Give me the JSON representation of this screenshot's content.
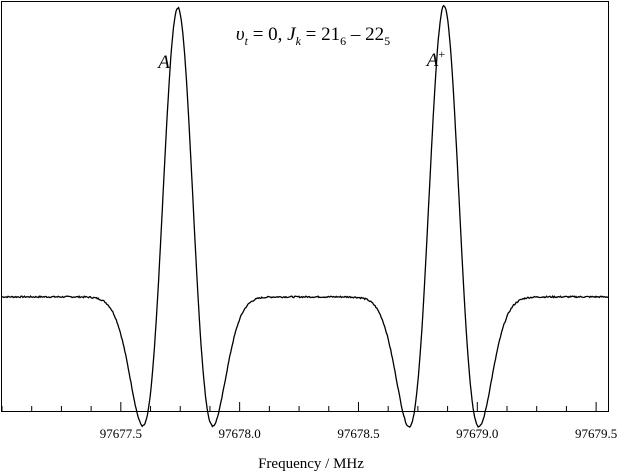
{
  "chart_data": {
    "type": "line",
    "title": {
      "prefix": "υ",
      "prefix_sub": "t",
      "mid": " = 0, ",
      "jsym": "J",
      "jsym_sub": "k",
      "eq": " = 21",
      "sub1": "6",
      "dash": " – 22",
      "sub2": "5"
    },
    "xlabel": "Frequency / MHz",
    "ylabel": "",
    "xlim": [
      97677.0,
      97679.55
    ],
    "ylim": [
      -1.15,
      1.0
    ],
    "grid": false,
    "y_ticks_shown": false,
    "x_ticks": [
      97677.5,
      97678.0,
      97678.5,
      97679.0,
      97679.5
    ],
    "x_tick_labels": [
      "97677.5",
      "97678.0",
      "97678.5",
      "97679.0",
      "97679.5"
    ],
    "x_minor_step": 0.125,
    "annotations": [
      {
        "text": "A",
        "sup": "",
        "x": 97677.74
      },
      {
        "text": "A",
        "sup": "+",
        "x": 97678.86
      }
    ],
    "series": [
      {
        "lineshape": "second-derivative-gaussian",
        "baseline": -0.55,
        "peaks": [
          {
            "center": 97677.74,
            "amplitude": 1.52,
            "width": 0.085
          },
          {
            "center": 97678.86,
            "amplitude": 1.53,
            "width": 0.085
          }
        ],
        "color": "#000000"
      }
    ]
  }
}
